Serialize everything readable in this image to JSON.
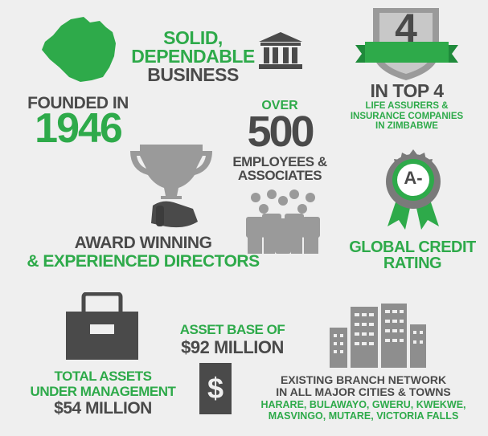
{
  "colors": {
    "green": "#2eaa4a",
    "dark": "#4a4a4a",
    "grey": "#999999",
    "background": "#efefef"
  },
  "founded": {
    "line1": "FOUNDED IN",
    "year": "1946"
  },
  "solid": {
    "line1": "SOLID,",
    "line2": "DEPENDABLE",
    "line3": "BUSINESS"
  },
  "top4": {
    "badge_number": "4",
    "title": "IN TOP 4",
    "line1": "LIFE ASSURERS &",
    "line2": "INSURANCE COMPANIES",
    "line3": "IN ZIMBABWE"
  },
  "employees": {
    "over": "OVER",
    "count": "500",
    "line1": "EMPLOYEES &",
    "line2": "ASSOCIATES"
  },
  "rating": {
    "grade": "A-",
    "line1": "GLOBAL CREDIT",
    "line2": "RATING"
  },
  "award": {
    "line1": "AWARD WINNING",
    "line2": "& EXPERIENCED DIRECTORS"
  },
  "assets": {
    "line1": "TOTAL ASSETS",
    "line2": "UNDER MANAGEMENT",
    "line3": "$54 MILLION"
  },
  "asset_base": {
    "line1": "ASSET BASE OF",
    "line2": "$92 MILLION",
    "icon_symbol": "$"
  },
  "branches": {
    "line1": "EXISTING BRANCH NETWORK",
    "line2": "IN ALL MAJOR CITIES & TOWNS",
    "line3": "HARARE, BULAWAYO, GWERU, KWEKWE,",
    "line4": "MASVINGO, MUTARE, VICTORIA FALLS"
  },
  "icons": [
    "zimbabwe-map-icon",
    "bank-building-icon",
    "ribbon-badge-icon",
    "trophy-icon",
    "people-group-icon",
    "rosette-icon",
    "file-drawer-icon",
    "dollar-banknote-icon",
    "city-buildings-icon"
  ]
}
